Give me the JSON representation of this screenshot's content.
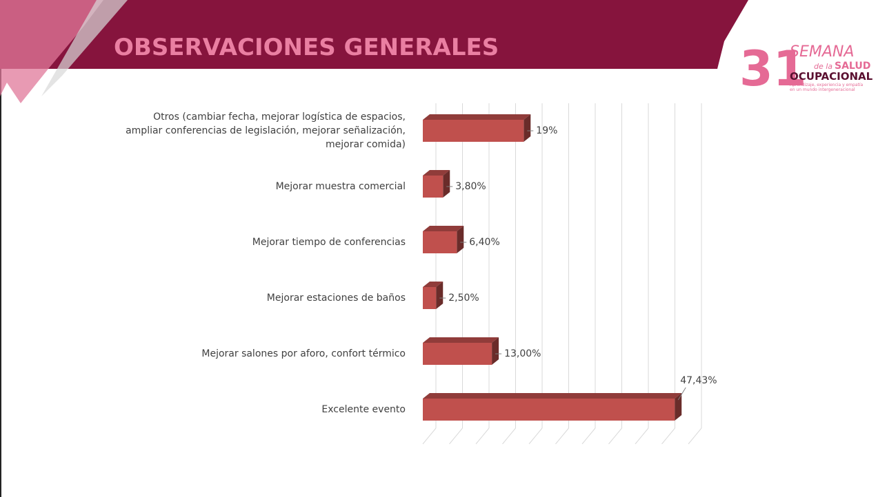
{
  "header": {
    "title": "OBSERVACIONES GENERALES"
  },
  "logo": {
    "number": "31",
    "word1": "SEMANA",
    "word2": "de la",
    "word3": "SALUD",
    "word4": "OCUPACIONAL",
    "tagline1": "Aprendizaje, experiencia y empatía",
    "tagline2": "en un mundo intergeneracional"
  },
  "chart_data": {
    "type": "bar3d",
    "categories": [
      "Otros (cambiar fecha, mejorar logística de espacios, ampliar conferencias de legislación, mejorar señalización, mejorar comida)",
      "Mejorar muestra comercial",
      "Mejorar tiempo de conferencias",
      "Mejorar estaciones de baños",
      "Mejorar salones por aforo, confort térmico",
      "Excelente evento"
    ],
    "values": [
      19,
      3.8,
      6.4,
      2.5,
      13,
      47.43
    ],
    "value_labels": [
      "19%",
      "3,80%",
      "6,40%",
      "2,50%",
      "13,00%",
      "47,43%"
    ],
    "color": "#c0504d",
    "xlim": [
      0,
      50
    ],
    "xticks": [
      0,
      5,
      10,
      15,
      20,
      25,
      30,
      35,
      40,
      45,
      50
    ],
    "grid": true
  }
}
